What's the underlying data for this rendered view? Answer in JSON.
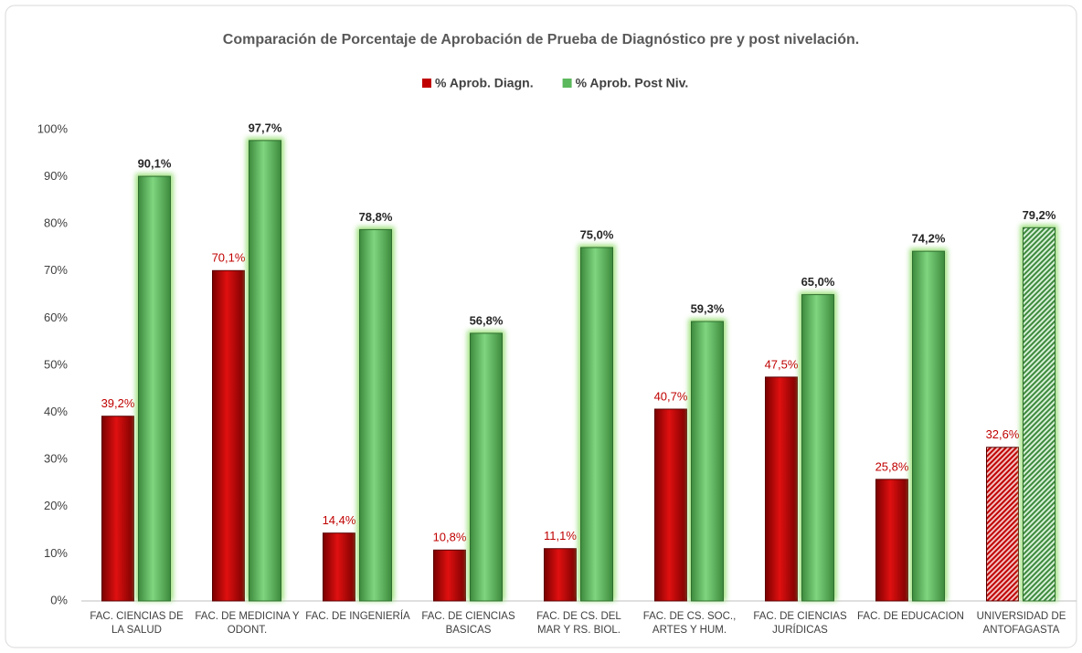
{
  "chart_data": {
    "type": "bar",
    "title": "Comparación  de Porcentaje de Aprobación de Prueba de Diagnóstico pre y post nivelación.",
    "categories": [
      "FAC. CIENCIAS DE LA SALUD",
      "FAC. DE MEDICINA Y ODONT.",
      "FAC. DE INGENIERÍA",
      "FAC. DE CIENCIAS BASICAS",
      "FAC. DE CS. DEL MAR Y RS. BIOL.",
      "FAC. DE CS. SOC., ARTES Y HUM.",
      "FAC. DE CIENCIAS JURÍDICAS",
      "FAC. DE EDUCACION",
      "UNIVERSIDAD DE ANTOFAGASTA"
    ],
    "series": [
      {
        "name": "% Aprob. Diagn.",
        "color": "#c00000",
        "values": [
          39.2,
          70.1,
          14.4,
          10.8,
          11.1,
          40.7,
          47.5,
          25.8,
          32.6
        ],
        "value_labels": [
          "39,2%",
          "70,1%",
          "14,4%",
          "10,8%",
          "11,1%",
          "40,7%",
          "47,5%",
          "25,8%",
          "32,6%"
        ]
      },
      {
        "name": "% Aprob. Post Niv.",
        "color": "#5cb85c",
        "values": [
          90.1,
          97.7,
          78.8,
          56.8,
          75.0,
          59.3,
          65.0,
          74.2,
          79.2
        ],
        "value_labels": [
          "90,1%",
          "97,7%",
          "78,8%",
          "56,8%",
          "75,0%",
          "59,3%",
          "65,0%",
          "74,2%",
          "79,2%"
        ]
      }
    ],
    "ylim": [
      0,
      100
    ],
    "yticks": [
      {
        "value": 0,
        "label": "0%"
      },
      {
        "value": 10,
        "label": "10%"
      },
      {
        "value": 20,
        "label": "20%"
      },
      {
        "value": 30,
        "label": "30%"
      },
      {
        "value": 40,
        "label": "40%"
      },
      {
        "value": 50,
        "label": "50%"
      },
      {
        "value": 60,
        "label": "60%"
      },
      {
        "value": 70,
        "label": "70%"
      },
      {
        "value": 80,
        "label": "80%"
      },
      {
        "value": 90,
        "label": "90%"
      },
      {
        "value": 100,
        "label": "100%"
      }
    ],
    "grid": false,
    "legend": "top"
  }
}
